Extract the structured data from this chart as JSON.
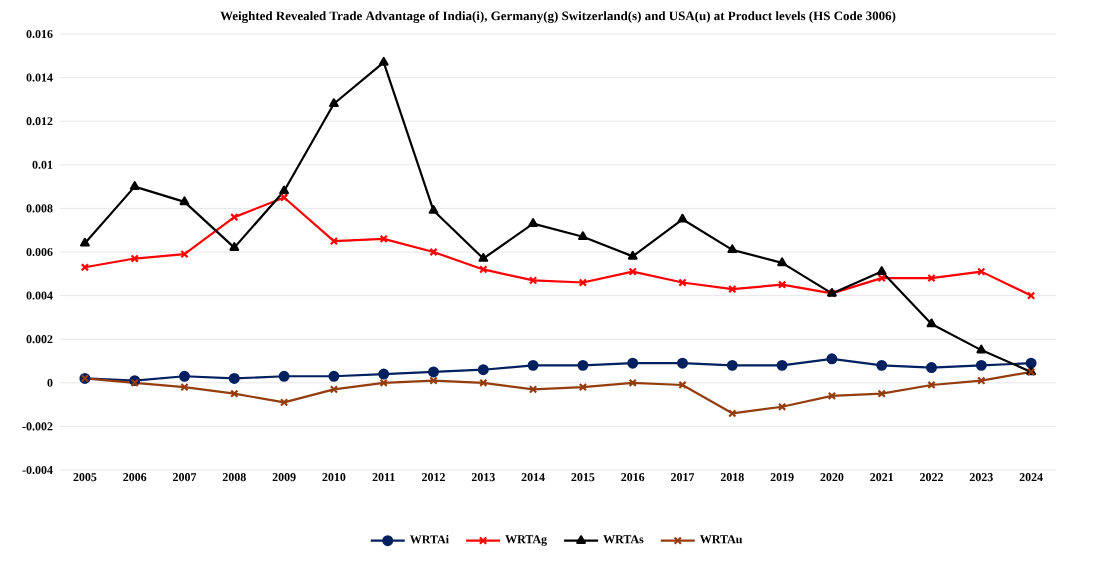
{
  "chart_data": {
    "type": "line",
    "title": "Weighted Revealed Trade Advantage of India(i), Germany(g) Switzerland(s) and USA(u) at Product levels (HS Code 3006)",
    "categories": [
      "2005",
      "2006",
      "2007",
      "2008",
      "2009",
      "2010",
      "2011",
      "2012",
      "2013",
      "2014",
      "2015",
      "2016",
      "2017",
      "2018",
      "2019",
      "2020",
      "2021",
      "2022",
      "2023",
      "2024"
    ],
    "series": [
      {
        "name": "WRTAi",
        "color": "#002060",
        "marker": "circle",
        "values": [
          0.0002,
          0.0001,
          0.0003,
          0.0002,
          0.0003,
          0.0003,
          0.0004,
          0.0005,
          0.0006,
          0.0008,
          0.0008,
          0.0009,
          0.0009,
          0.0008,
          0.0008,
          0.0011,
          0.0008,
          0.0007,
          0.0008,
          0.0009
        ]
      },
      {
        "name": "WRTAg",
        "color": "#ff0000",
        "marker": "cross",
        "values": [
          0.0053,
          0.0057,
          0.0059,
          0.0076,
          0.0085,
          0.0065,
          0.0066,
          0.006,
          0.0052,
          0.0047,
          0.0046,
          0.0051,
          0.0046,
          0.0043,
          0.0045,
          0.0041,
          0.0048,
          0.0048,
          0.0051,
          0.004
        ]
      },
      {
        "name": "WRTAs",
        "color": "#000000",
        "marker": "triangle",
        "values": [
          0.0064,
          0.009,
          0.0083,
          0.0062,
          0.0088,
          0.0128,
          0.0147,
          0.0079,
          0.0057,
          0.0073,
          0.0067,
          0.0058,
          0.0075,
          0.0061,
          0.0055,
          0.0041,
          0.0051,
          0.0027,
          0.0015,
          0.0005
        ]
      },
      {
        "name": "WRTAu",
        "color": "#943c0c",
        "marker": "cross",
        "values": [
          0.0002,
          0.0,
          -0.0002,
          -0.0005,
          -0.0009,
          -0.0003,
          0.0,
          0.0001,
          0.0,
          -0.0003,
          -0.0002,
          0.0,
          -0.0001,
          -0.0014,
          -0.0011,
          -0.0006,
          -0.0005,
          -0.0001,
          0.0001,
          0.0005
        ]
      }
    ],
    "ylim": [
      -0.004,
      0.016
    ],
    "yticks": [
      -0.004,
      -0.002,
      0,
      0.002,
      0.004,
      0.006,
      0.008,
      0.01,
      0.012,
      0.014,
      0.016
    ],
    "grid": "y",
    "legend": "bottom",
    "line_style": "solid"
  }
}
